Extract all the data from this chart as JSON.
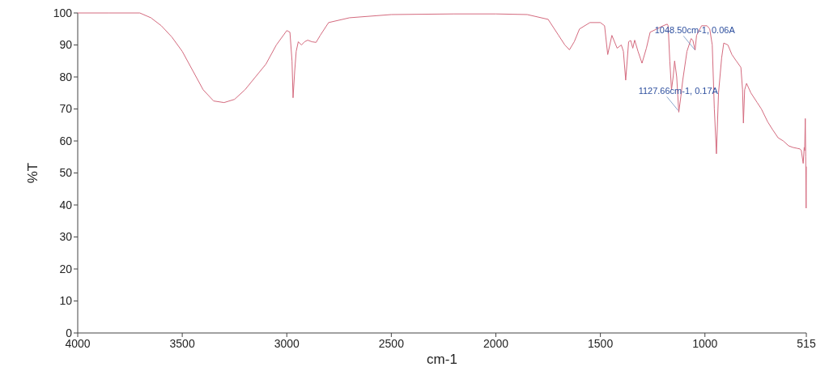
{
  "chart_data": {
    "type": "line",
    "xlabel": "cm-1",
    "ylabel": "%T",
    "xlim": [
      4000,
      515
    ],
    "xticks": [
      4000,
      3500,
      3000,
      2500,
      2000,
      1500,
      1000,
      515
    ],
    "ylim": [
      0,
      100
    ],
    "yticks": [
      0,
      10,
      20,
      30,
      40,
      50,
      60,
      70,
      80,
      90,
      100
    ],
    "grid": false,
    "annotations": [
      {
        "text": "1048.50cm-1, 0.06A",
        "x": 1048.5,
        "y": 88
      },
      {
        "text": "1127.66cm-1, 0.17A",
        "x": 1127.66,
        "y": 69
      }
    ],
    "series": [
      {
        "color": "#d46a7e",
        "x": [
          4000,
          3850,
          3703,
          3650,
          3600,
          3550,
          3500,
          3450,
          3400,
          3350,
          3300,
          3250,
          3200,
          3150,
          3100,
          3050,
          3000,
          2985,
          2975,
          2970,
          2962,
          2955,
          2945,
          2930,
          2915,
          2900,
          2880,
          2860,
          2840,
          2800,
          2700,
          2500,
          2200,
          2000,
          1850,
          1750,
          1700,
          1670,
          1648,
          1625,
          1600,
          1550,
          1500,
          1480,
          1465,
          1445,
          1420,
          1400,
          1390,
          1379,
          1365,
          1355,
          1345,
          1336,
          1320,
          1301,
          1280,
          1262,
          1230,
          1200,
          1180,
          1176,
          1168,
          1160,
          1152,
          1145,
          1135,
          1125,
          1115,
          1106,
          1086,
          1066,
          1058,
          1047,
          1040,
          1016,
          990,
          977,
          965,
          955,
          945,
          935,
          920,
          910,
          890,
          871,
          850,
          828,
          820,
          816,
          810,
          801,
          780,
          750,
          730,
          700,
          676,
          650,
          625,
          600,
          580,
          559,
          545,
          539,
          530,
          525,
          523,
          520,
          518,
          516,
          515
        ],
        "values": [
          100,
          100,
          100,
          98.5,
          96,
          92.5,
          88,
          82,
          76,
          72.5,
          72,
          73,
          76,
          80,
          84,
          90,
          94.5,
          94,
          85,
          73.5,
          82,
          88,
          91,
          90,
          91,
          91.5,
          91,
          90.8,
          93,
          97,
          98.5,
          99.5,
          99.7,
          99.7,
          99.5,
          98,
          93,
          90,
          88.5,
          91,
          95,
          97,
          97,
          96,
          87,
          93,
          89,
          90,
          88,
          79,
          91,
          91.4,
          89,
          91.5,
          88,
          84.3,
          89,
          94,
          95,
          96,
          96.5,
          96,
          85,
          76,
          80,
          85,
          80,
          69,
          74,
          79,
          88,
          92,
          91.5,
          88.4,
          93,
          96,
          96,
          95,
          90,
          70,
          56,
          75,
          86,
          90.6,
          90,
          87,
          85,
          83,
          76,
          65.6,
          76,
          78,
          75,
          72,
          70,
          66,
          63.5,
          61,
          60,
          58.5,
          58,
          57.7,
          57.5,
          57,
          53,
          58,
          57,
          67,
          55,
          39,
          52
        ]
      }
    ]
  }
}
